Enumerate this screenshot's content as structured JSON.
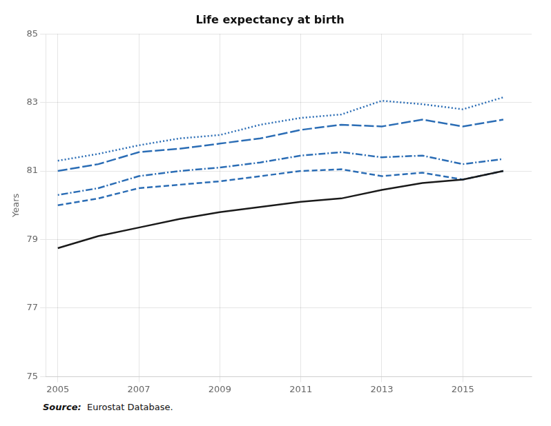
{
  "chart_data": {
    "type": "line",
    "title": "Life expectancy at birth",
    "ylabel": "Years",
    "annotations": [
      "Source:",
      "  Eurostat Database."
    ],
    "x": [
      2005,
      2006,
      2007,
      2008,
      2009,
      2010,
      2011,
      2012,
      2013,
      2014,
      2015,
      2016
    ],
    "xlim": [
      2004.7,
      2016.7
    ],
    "xticks": [
      2005,
      2007,
      2009,
      2011,
      2013,
      2015
    ],
    "ylim": [
      75,
      85
    ],
    "yticks": [
      75,
      77,
      79,
      81,
      83,
      85
    ],
    "grid": true,
    "series": [
      {
        "color": "#1a1a1a",
        "line_style": "solid",
        "values": [
          78.75,
          79.1,
          79.35,
          79.6,
          79.8,
          79.95,
          80.1,
          80.2,
          80.45,
          80.65,
          80.75,
          81.0
        ]
      },
      {
        "color": "#2b6db5",
        "line_style": "dashed",
        "values": [
          80.0,
          80.2,
          80.5,
          80.6,
          80.7,
          80.85,
          81.0,
          81.05,
          80.85,
          80.95,
          80.75,
          81.0
        ]
      },
      {
        "color": "#2b6db5",
        "line_style": "dashdot",
        "values": [
          80.3,
          80.5,
          80.85,
          81.0,
          81.1,
          81.25,
          81.45,
          81.55,
          81.4,
          81.45,
          81.2,
          81.35
        ]
      },
      {
        "color": "#2b6db5",
        "line_style": "longdash",
        "values": [
          81.0,
          81.2,
          81.55,
          81.65,
          81.8,
          81.95,
          82.2,
          82.35,
          82.3,
          82.5,
          82.3,
          82.5
        ]
      },
      {
        "color": "#2b6db5",
        "line_style": "dotted",
        "values": [
          81.3,
          81.5,
          81.75,
          81.95,
          82.05,
          82.35,
          82.55,
          82.65,
          83.05,
          82.95,
          82.8,
          83.15
        ]
      }
    ]
  }
}
